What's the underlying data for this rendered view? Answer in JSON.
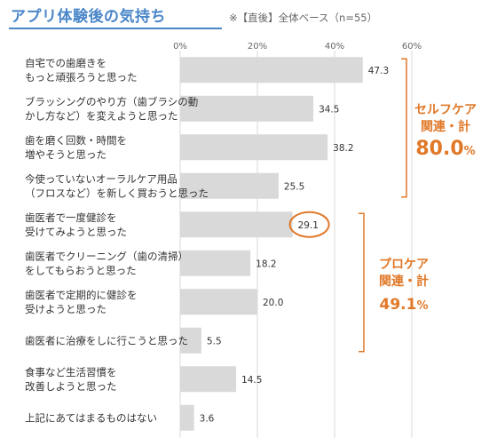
{
  "header": {
    "title": "アプリ体験後の気持ち",
    "note": "※【直後】全体ベース（n=55）"
  },
  "colors": {
    "bar": "#d9d9d9",
    "grid": "#d9d9d9",
    "accent": "#e07828",
    "title": "#4a86c8"
  },
  "chart_data": {
    "type": "bar",
    "orientation": "horizontal",
    "xlim": [
      0,
      60
    ],
    "ticks": [
      "0%",
      "20%",
      "40%",
      "60%"
    ],
    "tick_values": [
      0,
      20,
      40,
      60
    ],
    "grid": true,
    "categories": [
      [
        "自宅での歯磨きを",
        "もっと頑張ろうと思った"
      ],
      [
        "ブラッシングのやり方（歯ブラシの動",
        "かし方など）を変えようと思った"
      ],
      [
        "歯を磨く回数・時間を",
        "増やそうと思った"
      ],
      [
        "今使っていないオーラルケア用品",
        "（フロスなど）を新しく買おうと思った"
      ],
      [
        "歯医者で一度健診を",
        "受けてみようと思った"
      ],
      [
        "歯医者でクリーニング（歯の清掃）",
        "をしてもらおうと思った"
      ],
      [
        "歯医者で定期的に健診を",
        "受けようと思った"
      ],
      [
        "歯医者に治療をしに行こうと思った"
      ],
      [
        "食事など生活習慣を",
        "改善しようと思った"
      ],
      [
        "上記にあてはまるものはない"
      ]
    ],
    "values": [
      47.3,
      34.5,
      38.2,
      25.5,
      29.1,
      18.2,
      20.0,
      5.5,
      14.5,
      3.6
    ],
    "value_labels": [
      "47.3",
      "34.5",
      "38.2",
      "25.5",
      "29.1",
      "18.2",
      "20.0",
      "5.5",
      "14.5",
      "3.6"
    ],
    "highlight_index": 4,
    "groups": [
      {
        "name_lines": [
          "セルフケア",
          "関連・計"
        ],
        "value": "80.0",
        "unit": "%",
        "from": 0,
        "to": 3
      },
      {
        "name_lines": [
          "プロケア",
          "関連・計"
        ],
        "value": "49.1",
        "unit": "%",
        "from": 4,
        "to": 7
      }
    ]
  }
}
